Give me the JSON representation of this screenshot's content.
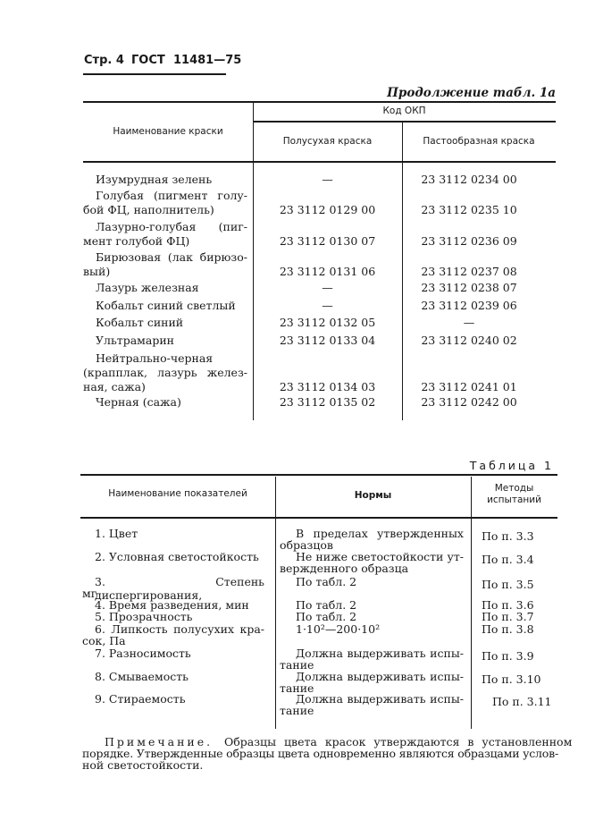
{
  "header": {
    "page": "Стр. 4",
    "standard": "ГОСТ",
    "number": "11481—75"
  },
  "table1a": {
    "caption": "Продолжение табл. 1а",
    "col_name": "Наименование краски",
    "col_group": "Код ОКП",
    "col_semi": "Полусухая краска",
    "col_paste": "Пастообразная краска",
    "rows": [
      {
        "name": [
          "Изумрудная зелень"
        ],
        "semi": "—",
        "paste": "23 3112 0234 00"
      },
      {
        "name": [
          "Голубая (пигмент голу-",
          "бой ФЦ, наполнитель)"
        ],
        "semi": "23 3112 0129 00",
        "paste": "23 3112 0235 10"
      },
      {
        "name": [
          "Лазурно-голубая (пиг-",
          "мент голубой ФЦ)"
        ],
        "semi": "23 3112 0130 07",
        "paste": "23 3112 0236 09"
      },
      {
        "name": [
          "Бирюзовая (лак бирюзо-",
          "вый)"
        ],
        "semi": "23 3112 0131 06",
        "paste": "23 3112 0237 08"
      },
      {
        "name": [
          "Лазурь железная"
        ],
        "semi": "—",
        "paste": "23 3112 0238 07"
      },
      {
        "name": [
          "Кобальт синий светлый"
        ],
        "semi": "—",
        "paste": "23 3112 0239 06"
      },
      {
        "name": [
          "Кобальт синий"
        ],
        "semi": "23 3112 0132 05",
        "paste": "—"
      },
      {
        "name": [
          "Ультрамарин"
        ],
        "semi": "23 3112 0133 04",
        "paste": "23 3112 0240 02"
      },
      {
        "name": [
          "Нейтрально-черная",
          "(крапплак, лазурь желез-",
          "ная, сажа)"
        ],
        "semi": "23 3112 0134 03",
        "paste": "23 3112 0241 01"
      },
      {
        "name": [
          "Черная (сажа)"
        ],
        "semi": "23 3112 0135 02",
        "paste": "23 3112 0242 00"
      }
    ]
  },
  "table1": {
    "caption": "Таблица 1",
    "col_name": "Наименование показателей",
    "col_norm": "Нормы",
    "col_method": [
      "Методы",
      "испытаний"
    ],
    "rows": [
      {
        "name": [
          "1. Цвет"
        ],
        "norm": [
          "В пределах утвержденных",
          "образцов"
        ],
        "method": "По п. 3.3"
      },
      {
        "name": [
          "2. Условная светостойкость"
        ],
        "norm": [
          "Не ниже светостойкости ут-",
          "вержденного образца"
        ],
        "method": "По п. 3.4"
      },
      {
        "name": [
          "3. Степень диспергирования,",
          "мг"
        ],
        "norm": [
          "По табл. 2"
        ],
        "method": "По п. 3.5"
      },
      {
        "name": [
          "4. Время разведения, мин"
        ],
        "norm": [
          "По табл. 2"
        ],
        "method": "По п. 3.6"
      },
      {
        "name": [
          "5. Прозрачность"
        ],
        "norm": [
          "По табл. 2"
        ],
        "method": "По п. 3.7"
      },
      {
        "name": [
          "6. Липкость полусухих кра-",
          "сок, Па"
        ],
        "norm": [
          "1·10²—200·10²"
        ],
        "method": "По п. 3.8"
      },
      {
        "name": [
          "7. Разносимость"
        ],
        "norm": [
          "Должна выдерживать испы-",
          "тание"
        ],
        "method": "По п. 3.9"
      },
      {
        "name": [
          "8. Смываемость"
        ],
        "norm": [
          "Должна выдерживать испы-",
          "тание"
        ],
        "method": "По п. 3.10"
      },
      {
        "name": [
          "9. Стираемость"
        ],
        "norm": [
          "Должна выдерживать испы-",
          "тание"
        ],
        "method": "По п. 3.11"
      }
    ]
  },
  "note": {
    "label": "Примечание.",
    "lines": [
      "Образцы цвета красок утверждаются в установленном",
      "порядке. Утвержденные образцы цвета одновременно являются образцами услов-",
      "ной светостойкости."
    ]
  }
}
